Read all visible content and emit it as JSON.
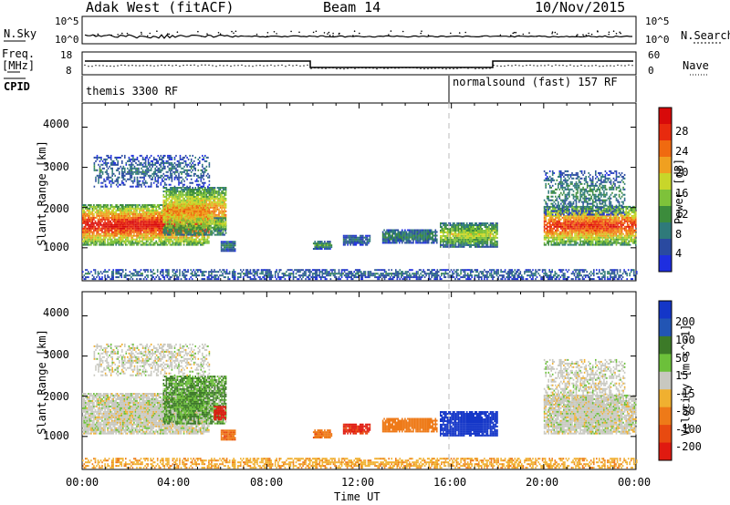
{
  "header": {
    "title_left": "Adak West (fitACF)",
    "title_center": "Beam 14",
    "title_right": "10/Nov/2015"
  },
  "top_panels": {
    "nsky_label": "N.Sky",
    "nsky_ticks": [
      "10^5",
      "10^0"
    ],
    "nsearch_label": "N.Search",
    "nsearch_ticks": [
      "10^5",
      "10^0"
    ],
    "freq_label_1": "Freq.",
    "freq_label_2": "[MHz]",
    "freq_ticks": [
      "18",
      "8"
    ],
    "nave_label": "Nave",
    "nave_ticks": [
      "60",
      "0"
    ],
    "cpid_label": "CPID",
    "cpid_modes": [
      "themis 3300 RF",
      "normalsound (fast) 157 RF"
    ]
  },
  "power_panel": {
    "ylabel": "Slant Range [km]",
    "yticks": [
      "4000",
      "3000",
      "2000",
      "1000"
    ],
    "colorbar_label": "Power [dB]",
    "colorbar_ticks": [
      "28",
      "24",
      "20",
      "16",
      "12",
      "8",
      "4"
    ],
    "colors": [
      "#1e2ee0",
      "#2a4aa0",
      "#2f7a7a",
      "#3c8c3c",
      "#7ec23a",
      "#c8d62a",
      "#f0a020",
      "#f06a10",
      "#e82a0e",
      "#d80a0a"
    ]
  },
  "velocity_panel": {
    "ylabel": "Slant Range [km]",
    "yticks": [
      "4000",
      "3000",
      "2000",
      "1000"
    ],
    "colorbar_label": "Velocity [m s^-1]",
    "colorbar_ticks": [
      "200",
      "100",
      "50",
      "15",
      "-15",
      "-50",
      "-100",
      "-200"
    ],
    "colors": [
      "#1436c8",
      "#2255b4",
      "#3c7a28",
      "#6cc03a",
      "#c8c8c0",
      "#f0b030",
      "#ee7a18",
      "#e84a10",
      "#e01a10"
    ]
  },
  "x_axis": {
    "ticks": [
      "00:00",
      "04:00",
      "08:00",
      "12:00",
      "16:00",
      "20:00",
      "00:00"
    ],
    "label": "Time UT"
  },
  "chart_data": {
    "type": "heatmap",
    "title": "Adak West (fitACF) Beam 14 10/Nov/2015",
    "xlabel": "Time UT",
    "ylabel": "Slant Range [km]",
    "xlim": [
      0,
      24
    ],
    "ylim": [
      180,
      4600
    ],
    "grid": false,
    "cpid_change_hour": 16,
    "power_range_db": [
      0,
      30
    ],
    "velocity_range": [
      -250,
      250
    ],
    "clusters": [
      {
        "t0": 0.0,
        "t1": 5.5,
        "r0": 1050,
        "r1": 2050,
        "power": 24,
        "velocity": 0
      },
      {
        "t0": 3.5,
        "t1": 6.2,
        "r0": 1300,
        "r1": 2500,
        "power": 18,
        "velocity": 30
      },
      {
        "t0": 5.7,
        "t1": 6.2,
        "r0": 1400,
        "r1": 1750,
        "power": 14,
        "velocity": -200
      },
      {
        "t0": 6.0,
        "t1": 6.6,
        "r0": 900,
        "r1": 1150,
        "power": 8,
        "velocity": -90
      },
      {
        "t0": 0.5,
        "t1": 5.5,
        "r0": 2500,
        "r1": 3300,
        "power": 6,
        "velocity": 0
      },
      {
        "t0": 10.0,
        "t1": 10.8,
        "r0": 950,
        "r1": 1150,
        "power": 10,
        "velocity": -90
      },
      {
        "t0": 11.3,
        "t1": 12.5,
        "r0": 1050,
        "r1": 1300,
        "power": 6,
        "velocity": -160
      },
      {
        "t0": 13.0,
        "t1": 15.4,
        "r0": 1100,
        "r1": 1450,
        "power": 8,
        "velocity": -80
      },
      {
        "t0": 15.5,
        "t1": 18.0,
        "r0": 1000,
        "r1": 1600,
        "power": 14,
        "velocity": 190
      },
      {
        "t0": 20.0,
        "t1": 24.0,
        "r0": 1050,
        "r1": 2000,
        "power": 22,
        "velocity": 0
      },
      {
        "t0": 20.0,
        "t1": 23.5,
        "r0": 1800,
        "r1": 2900,
        "power": 8,
        "velocity": 0
      },
      {
        "t0": 0.0,
        "t1": 24.0,
        "r0": 200,
        "r1": 450,
        "power": 6,
        "velocity": -40
      }
    ]
  }
}
